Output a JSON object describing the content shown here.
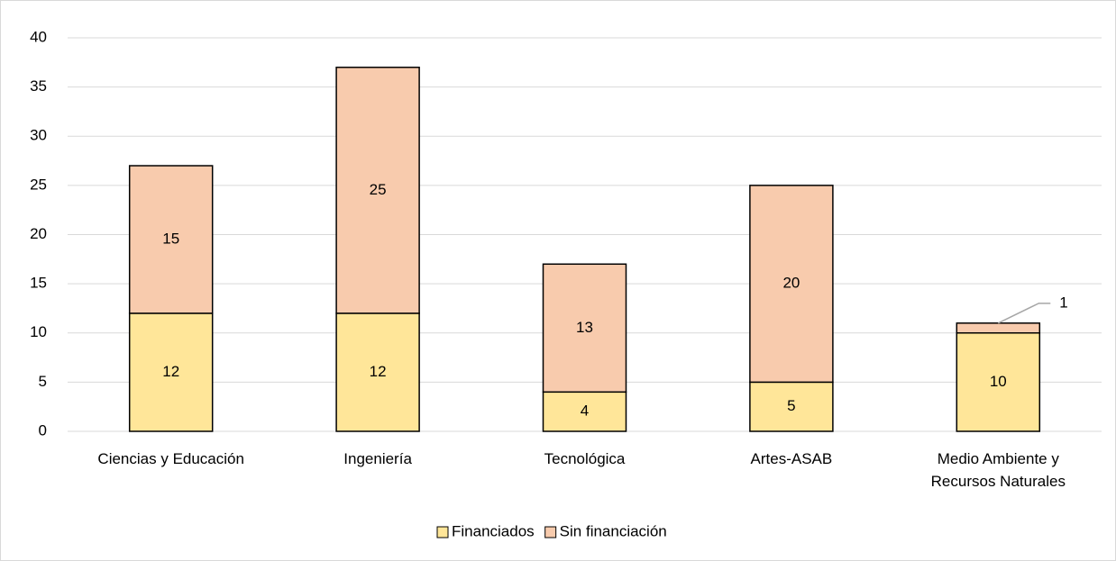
{
  "chart_data": {
    "type": "stacked_bar",
    "categories": [
      "Ciencias y Educación",
      "Ingeniería",
      "Tecnológica",
      "Artes-ASAB",
      "Medio Ambiente y Recursos Naturales"
    ],
    "series": [
      {
        "name": "Financiados",
        "color": "#FFE699",
        "values": [
          12,
          12,
          4,
          5,
          10
        ]
      },
      {
        "name": "Sin financiación",
        "color": "#F8CBAD",
        "values": [
          15,
          25,
          13,
          20,
          1
        ]
      }
    ],
    "ylim": [
      0,
      40
    ],
    "yticks": [
      0,
      5,
      10,
      15,
      20,
      25,
      30,
      35,
      40
    ],
    "grid": true,
    "legend": "bottom"
  }
}
